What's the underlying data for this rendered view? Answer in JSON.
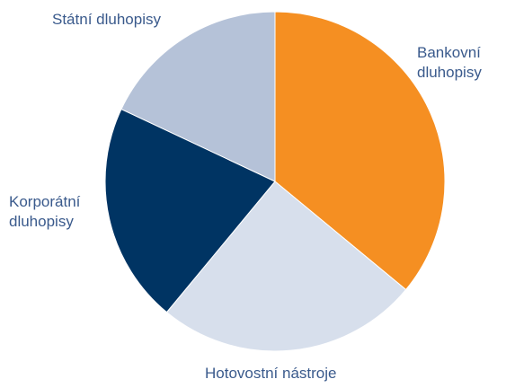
{
  "chart_data": {
    "type": "pie",
    "title": "",
    "slices": [
      {
        "label_lines": [
          "Bankovní",
          "dluhopisy"
        ],
        "value": 36,
        "color": "#F58F22"
      },
      {
        "label_lines": [
          "Hotovostní nástroje"
        ],
        "value": 25,
        "color": "#D7DFEC"
      },
      {
        "label_lines": [
          "Korporátní",
          "dluhopisy"
        ],
        "value": 21,
        "color": "#003463"
      },
      {
        "label_lines": [
          "Státní dluhopisy"
        ],
        "value": 18,
        "color": "#B5C2D8"
      }
    ],
    "start_angle": "12 o'clock",
    "direction": "clockwise"
  }
}
